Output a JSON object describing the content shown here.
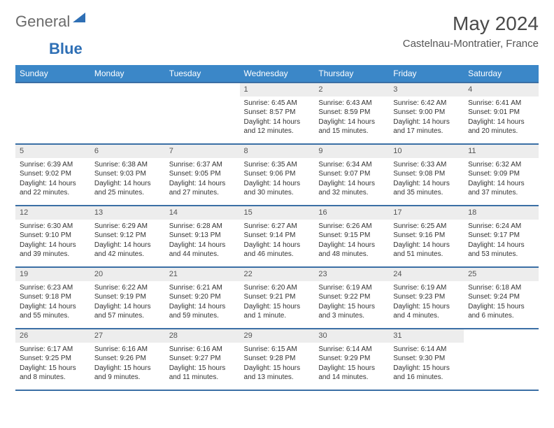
{
  "brand": {
    "word1": "General",
    "word2": "Blue",
    "word1_color": "#6b6b6b",
    "word2_color": "#2e6fb5",
    "tri_color": "#2e6fb5"
  },
  "title": "May 2024",
  "location": "Castelnau-Montratier, France",
  "colors": {
    "header_bg": "#3b87c8",
    "row_border": "#3b6fa5",
    "daynum_bg": "#ededed"
  },
  "weekdays": [
    "Sunday",
    "Monday",
    "Tuesday",
    "Wednesday",
    "Thursday",
    "Friday",
    "Saturday"
  ],
  "blanks_before": 3,
  "days": [
    {
      "n": 1,
      "sr": "6:45 AM",
      "ss": "8:57 PM",
      "dl": "14 hours and 12 minutes."
    },
    {
      "n": 2,
      "sr": "6:43 AM",
      "ss": "8:59 PM",
      "dl": "14 hours and 15 minutes."
    },
    {
      "n": 3,
      "sr": "6:42 AM",
      "ss": "9:00 PM",
      "dl": "14 hours and 17 minutes."
    },
    {
      "n": 4,
      "sr": "6:41 AM",
      "ss": "9:01 PM",
      "dl": "14 hours and 20 minutes."
    },
    {
      "n": 5,
      "sr": "6:39 AM",
      "ss": "9:02 PM",
      "dl": "14 hours and 22 minutes."
    },
    {
      "n": 6,
      "sr": "6:38 AM",
      "ss": "9:03 PM",
      "dl": "14 hours and 25 minutes."
    },
    {
      "n": 7,
      "sr": "6:37 AM",
      "ss": "9:05 PM",
      "dl": "14 hours and 27 minutes."
    },
    {
      "n": 8,
      "sr": "6:35 AM",
      "ss": "9:06 PM",
      "dl": "14 hours and 30 minutes."
    },
    {
      "n": 9,
      "sr": "6:34 AM",
      "ss": "9:07 PM",
      "dl": "14 hours and 32 minutes."
    },
    {
      "n": 10,
      "sr": "6:33 AM",
      "ss": "9:08 PM",
      "dl": "14 hours and 35 minutes."
    },
    {
      "n": 11,
      "sr": "6:32 AM",
      "ss": "9:09 PM",
      "dl": "14 hours and 37 minutes."
    },
    {
      "n": 12,
      "sr": "6:30 AM",
      "ss": "9:10 PM",
      "dl": "14 hours and 39 minutes."
    },
    {
      "n": 13,
      "sr": "6:29 AM",
      "ss": "9:12 PM",
      "dl": "14 hours and 42 minutes."
    },
    {
      "n": 14,
      "sr": "6:28 AM",
      "ss": "9:13 PM",
      "dl": "14 hours and 44 minutes."
    },
    {
      "n": 15,
      "sr": "6:27 AM",
      "ss": "9:14 PM",
      "dl": "14 hours and 46 minutes."
    },
    {
      "n": 16,
      "sr": "6:26 AM",
      "ss": "9:15 PM",
      "dl": "14 hours and 48 minutes."
    },
    {
      "n": 17,
      "sr": "6:25 AM",
      "ss": "9:16 PM",
      "dl": "14 hours and 51 minutes."
    },
    {
      "n": 18,
      "sr": "6:24 AM",
      "ss": "9:17 PM",
      "dl": "14 hours and 53 minutes."
    },
    {
      "n": 19,
      "sr": "6:23 AM",
      "ss": "9:18 PM",
      "dl": "14 hours and 55 minutes."
    },
    {
      "n": 20,
      "sr": "6:22 AM",
      "ss": "9:19 PM",
      "dl": "14 hours and 57 minutes."
    },
    {
      "n": 21,
      "sr": "6:21 AM",
      "ss": "9:20 PM",
      "dl": "14 hours and 59 minutes."
    },
    {
      "n": 22,
      "sr": "6:20 AM",
      "ss": "9:21 PM",
      "dl": "15 hours and 1 minute."
    },
    {
      "n": 23,
      "sr": "6:19 AM",
      "ss": "9:22 PM",
      "dl": "15 hours and 3 minutes."
    },
    {
      "n": 24,
      "sr": "6:19 AM",
      "ss": "9:23 PM",
      "dl": "15 hours and 4 minutes."
    },
    {
      "n": 25,
      "sr": "6:18 AM",
      "ss": "9:24 PM",
      "dl": "15 hours and 6 minutes."
    },
    {
      "n": 26,
      "sr": "6:17 AM",
      "ss": "9:25 PM",
      "dl": "15 hours and 8 minutes."
    },
    {
      "n": 27,
      "sr": "6:16 AM",
      "ss": "9:26 PM",
      "dl": "15 hours and 9 minutes."
    },
    {
      "n": 28,
      "sr": "6:16 AM",
      "ss": "9:27 PM",
      "dl": "15 hours and 11 minutes."
    },
    {
      "n": 29,
      "sr": "6:15 AM",
      "ss": "9:28 PM",
      "dl": "15 hours and 13 minutes."
    },
    {
      "n": 30,
      "sr": "6:14 AM",
      "ss": "9:29 PM",
      "dl": "15 hours and 14 minutes."
    },
    {
      "n": 31,
      "sr": "6:14 AM",
      "ss": "9:30 PM",
      "dl": "15 hours and 16 minutes."
    }
  ],
  "labels": {
    "sunrise": "Sunrise:",
    "sunset": "Sunset:",
    "daylight": "Daylight:"
  }
}
